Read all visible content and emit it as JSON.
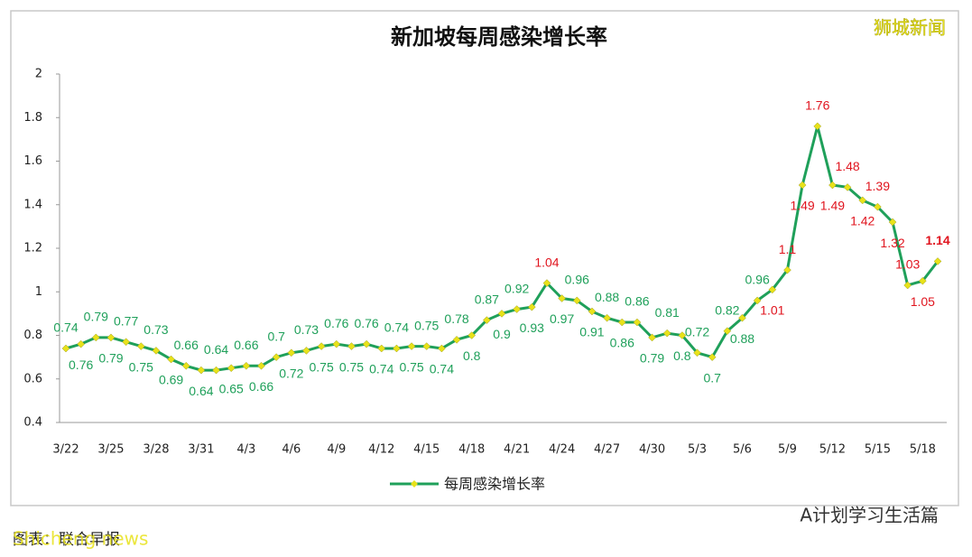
{
  "chart_data": {
    "type": "line",
    "title": "新加坡每周感染增长率",
    "categories": [
      "3/22",
      null,
      null,
      "3/25",
      null,
      null,
      "3/28",
      null,
      null,
      "3/31",
      null,
      null,
      "4/3",
      null,
      null,
      "4/6",
      null,
      null,
      "4/9",
      null,
      null,
      "4/12",
      null,
      null,
      "4/15",
      null,
      null,
      "4/18",
      null,
      null,
      "4/21",
      null,
      null,
      "4/24",
      null,
      null,
      "4/27",
      null,
      null,
      "4/30",
      null,
      null,
      "5/3",
      null,
      null,
      "5/6",
      null,
      null,
      "5/9",
      null,
      null,
      "5/12",
      null,
      null,
      "5/15",
      null,
      null,
      "5/18",
      null
    ],
    "series": [
      {
        "name": "每周感染增长率",
        "color": "#1fa05a",
        "marker_color": "#e8e21a",
        "values": [
          0.74,
          0.76,
          0.79,
          0.79,
          0.77,
          0.75,
          0.73,
          0.69,
          0.66,
          0.64,
          0.64,
          0.65,
          0.66,
          0.66,
          0.7,
          0.72,
          0.73,
          0.75,
          0.76,
          0.75,
          0.76,
          0.74,
          0.74,
          0.75,
          0.75,
          0.74,
          0.78,
          0.8,
          0.87,
          0.9,
          0.92,
          0.93,
          1.04,
          0.97,
          0.96,
          0.91,
          0.88,
          0.86,
          0.86,
          0.79,
          0.81,
          0.8,
          0.72,
          0.7,
          0.82,
          0.88,
          0.96,
          1.01,
          1.1,
          1.49,
          1.76,
          1.49,
          1.48,
          1.42,
          1.39,
          1.32,
          1.03,
          1.05,
          1.14
        ]
      }
    ],
    "ylim": [
      0.4,
      2
    ],
    "yticks": [
      0.4,
      0.6,
      0.8,
      1,
      1.2,
      1.4,
      1.6,
      1.8,
      2
    ],
    "label_colors": {
      "low": "#1fa05a",
      "high": "#e0141e"
    }
  },
  "watermark": "狮城新闻",
  "footer": "A计划学习生活篇",
  "source": "图表：联合早报",
  "source_overlay": "Shicheng news"
}
